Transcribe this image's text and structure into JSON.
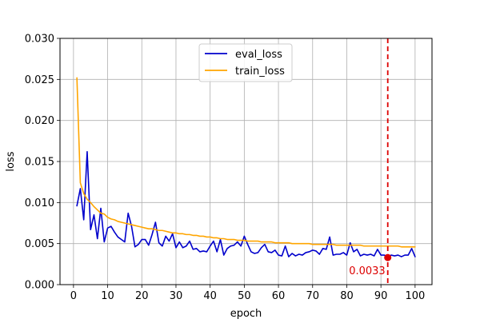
{
  "chart_data": {
    "type": "line",
    "title": "",
    "xlabel": "epoch",
    "ylabel": "loss",
    "xlim": [
      -3.95,
      104.95
    ],
    "ylim": [
      0.0,
      0.03
    ],
    "grid": true,
    "legend_position": "top-center",
    "x_ticks": [
      0,
      10,
      20,
      30,
      40,
      50,
      60,
      70,
      80,
      90,
      100
    ],
    "x_tick_labels": [
      "0",
      "10",
      "20",
      "30",
      "40",
      "50",
      "60",
      "70",
      "80",
      "90",
      "100"
    ],
    "y_ticks": [
      0.0,
      0.005,
      0.01,
      0.015,
      0.02,
      0.025,
      0.03
    ],
    "y_tick_labels": [
      "0.000",
      "0.005",
      "0.010",
      "0.015",
      "0.020",
      "0.025",
      "0.030"
    ],
    "x": [
      1,
      2,
      3,
      4,
      5,
      6,
      7,
      8,
      9,
      10,
      11,
      12,
      13,
      14,
      15,
      16,
      17,
      18,
      19,
      20,
      21,
      22,
      23,
      24,
      25,
      26,
      27,
      28,
      29,
      30,
      31,
      32,
      33,
      34,
      35,
      36,
      37,
      38,
      39,
      40,
      41,
      42,
      43,
      44,
      45,
      46,
      47,
      48,
      49,
      50,
      51,
      52,
      53,
      54,
      55,
      56,
      57,
      58,
      59,
      60,
      61,
      62,
      63,
      64,
      65,
      66,
      67,
      68,
      69,
      70,
      71,
      72,
      73,
      74,
      75,
      76,
      77,
      78,
      79,
      80,
      81,
      82,
      83,
      84,
      85,
      86,
      87,
      88,
      89,
      90,
      91,
      92,
      93,
      94,
      95,
      96,
      97,
      98,
      99,
      100
    ],
    "series": [
      {
        "name": "eval_loss",
        "color": "#0000cc",
        "values": [
          0.0096,
          0.0117,
          0.0079,
          0.0162,
          0.0067,
          0.0085,
          0.0056,
          0.0093,
          0.0052,
          0.0069,
          0.0071,
          0.0064,
          0.0058,
          0.0055,
          0.0052,
          0.0087,
          0.0071,
          0.0046,
          0.0049,
          0.0055,
          0.0055,
          0.0048,
          0.0061,
          0.0076,
          0.0051,
          0.0047,
          0.0059,
          0.0053,
          0.0062,
          0.0045,
          0.0052,
          0.0045,
          0.0047,
          0.0053,
          0.0043,
          0.0044,
          0.004,
          0.0041,
          0.004,
          0.0047,
          0.0053,
          0.004,
          0.0055,
          0.0036,
          0.0044,
          0.0047,
          0.0048,
          0.0052,
          0.0047,
          0.0059,
          0.0049,
          0.004,
          0.0038,
          0.0039,
          0.0045,
          0.0049,
          0.004,
          0.0039,
          0.0042,
          0.0036,
          0.0035,
          0.0047,
          0.0034,
          0.0038,
          0.0035,
          0.0037,
          0.0036,
          0.0039,
          0.004,
          0.0042,
          0.0041,
          0.0037,
          0.0044,
          0.0043,
          0.0058,
          0.0036,
          0.0037,
          0.0037,
          0.0039,
          0.0036,
          0.0051,
          0.004,
          0.0043,
          0.0035,
          0.0037,
          0.0036,
          0.0037,
          0.0035,
          0.0043,
          0.0036,
          0.0036,
          0.0033,
          0.0036,
          0.0035,
          0.0036,
          0.0034,
          0.0036,
          0.0036,
          0.0044,
          0.0034
        ]
      },
      {
        "name": "train_loss",
        "color": "#ffa500",
        "values": [
          0.0252,
          0.0124,
          0.0111,
          0.0104,
          0.01,
          0.0095,
          0.0091,
          0.0087,
          0.0086,
          0.0082,
          0.008,
          0.0079,
          0.0077,
          0.0076,
          0.0075,
          0.0074,
          0.0073,
          0.0072,
          0.0071,
          0.007,
          0.0069,
          0.0068,
          0.0068,
          0.0067,
          0.0066,
          0.0066,
          0.0065,
          0.0064,
          0.0063,
          0.0063,
          0.0062,
          0.0062,
          0.0061,
          0.0061,
          0.006,
          0.006,
          0.0059,
          0.0059,
          0.0058,
          0.0058,
          0.0057,
          0.0057,
          0.0056,
          0.0056,
          0.0055,
          0.0055,
          0.0055,
          0.0054,
          0.0054,
          0.0054,
          0.0053,
          0.0053,
          0.0053,
          0.0053,
          0.0052,
          0.0052,
          0.0052,
          0.0052,
          0.0051,
          0.0051,
          0.0051,
          0.0051,
          0.0051,
          0.005,
          0.005,
          0.005,
          0.005,
          0.005,
          0.005,
          0.0049,
          0.0049,
          0.0049,
          0.0049,
          0.0049,
          0.0049,
          0.0049,
          0.0048,
          0.0048,
          0.0048,
          0.0048,
          0.0048,
          0.0048,
          0.0048,
          0.0048,
          0.0047,
          0.0047,
          0.0047,
          0.0047,
          0.0047,
          0.0047,
          0.0047,
          0.0047,
          0.0047,
          0.0047,
          0.0047,
          0.0046,
          0.0046,
          0.0046,
          0.0046,
          0.0046
        ]
      }
    ],
    "marker": {
      "x": 92,
      "y": 0.0033,
      "label": "0.0033",
      "color": "#dd0000",
      "vline_style": "dashed"
    }
  }
}
